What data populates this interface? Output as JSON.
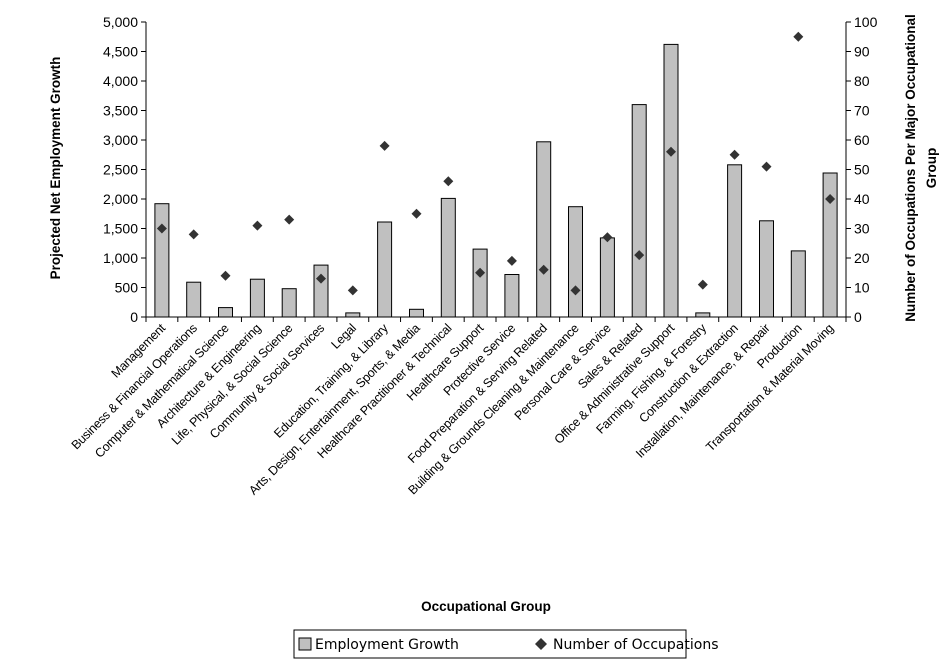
{
  "chart_data": {
    "type": "bar",
    "categories": [
      "Management",
      "Business & Financial Operations",
      "Computer & Mathematical Science",
      "Architecture & Engineering",
      "Life, Physical, & Social Science",
      "Community & Social Services",
      "Legal",
      "Education, Training, & Library",
      "Arts, Design, Entertainment, Sports, & Media",
      "Healthcare Practitioner & Technical",
      "Healthcare Support",
      "Protective Service",
      "Food Preparation & Serving Related",
      "Building & Grounds Cleaning & Maintenance",
      "Personal Care & Service",
      "Sales & Related",
      "Office & Administrative Support",
      "Farming, Fishing, & Forestry",
      "Construction & Extraction",
      "Installation, Maintenance, & Repair",
      "Production",
      "Transportation & Material Moving"
    ],
    "series": [
      {
        "name": "Employment Growth",
        "type": "bar",
        "axis": "left",
        "color": "#c0c0c0",
        "values": [
          1920,
          590,
          160,
          640,
          480,
          880,
          70,
          1610,
          130,
          2010,
          1150,
          720,
          2970,
          1870,
          1340,
          3600,
          4620,
          70,
          2580,
          1630,
          1120,
          2440
        ]
      },
      {
        "name": "Number of Occupations",
        "type": "scatter",
        "marker": "diamond",
        "axis": "right",
        "color": "#333333",
        "values": [
          30,
          28,
          14,
          31,
          33,
          13,
          9,
          58,
          35,
          46,
          15,
          19,
          16,
          9,
          27,
          21,
          56,
          11,
          55,
          51,
          95,
          40
        ]
      }
    ],
    "xlabel": "Occupational Group",
    "ylabel": "Projected Net Employment Growth",
    "ylabel_right": "Number of Occupations Per Major Occupational Group",
    "ylim": [
      0,
      5000
    ],
    "ylim_right": [
      0,
      100
    ],
    "yticks": [
      "0",
      "500",
      "1,000",
      "1,500",
      "2,000",
      "2,500",
      "3,000",
      "3,500",
      "4,000",
      "4,500",
      "5,000"
    ],
    "yticks_right": [
      "0",
      "10",
      "20",
      "30",
      "40",
      "50",
      "60",
      "70",
      "80",
      "90",
      "100"
    ],
    "grid": false,
    "legend_position": "bottom"
  }
}
